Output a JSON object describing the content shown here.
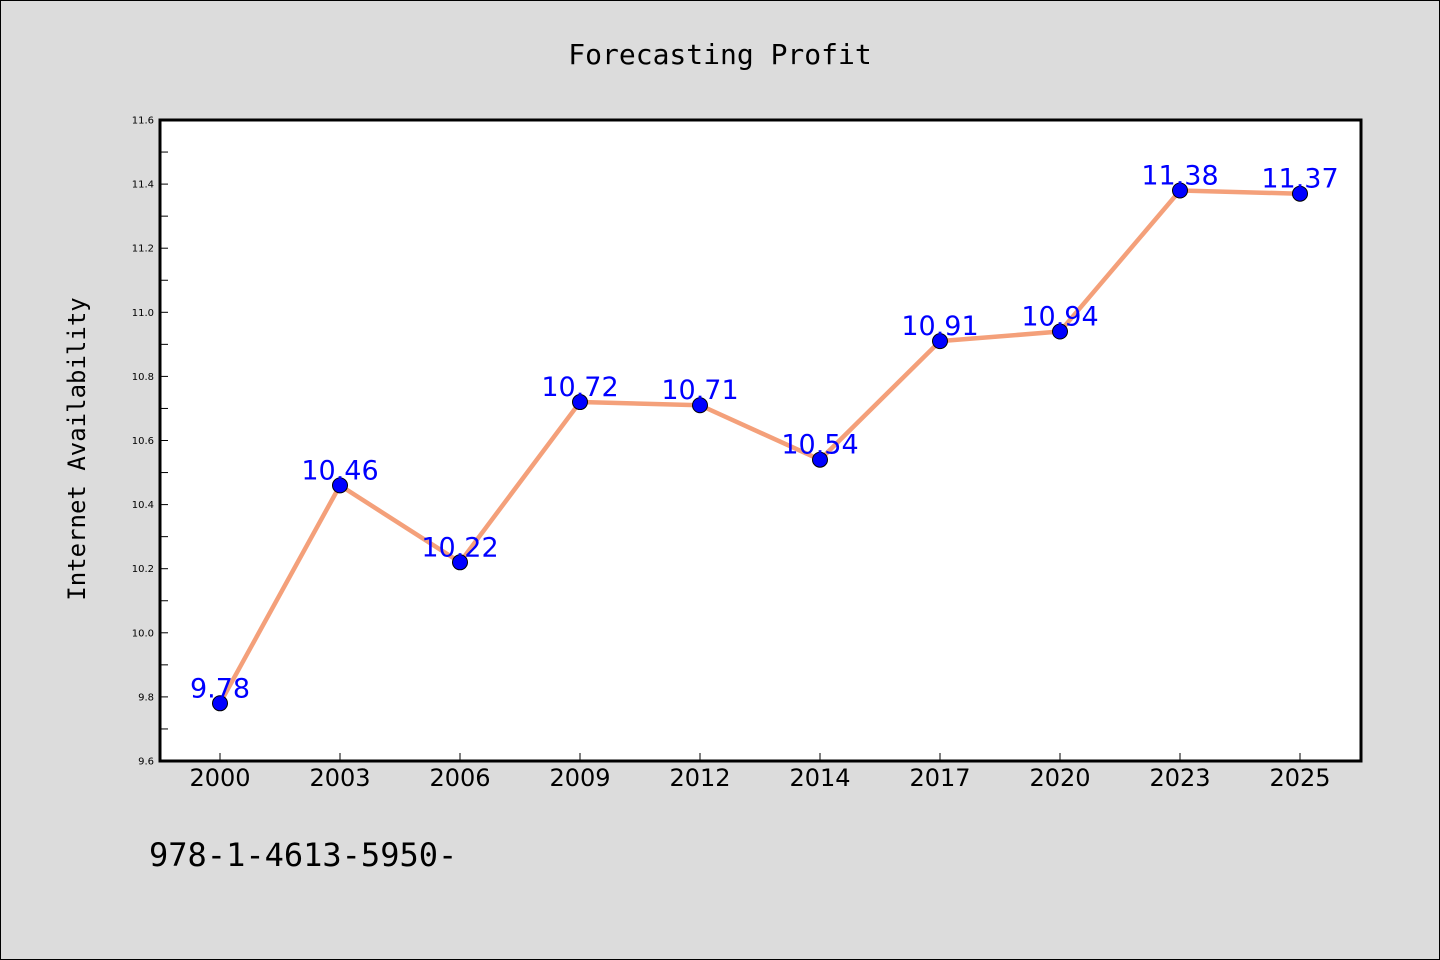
{
  "chart_data": {
    "type": "line",
    "title": "Forecasting Profit",
    "xlabel": "",
    "ylabel": "Internet Availability",
    "categories": [
      "2000",
      "2003",
      "2006",
      "2009",
      "2012",
      "2014",
      "2017",
      "2020",
      "2023",
      "2025"
    ],
    "series": [
      {
        "values": [
          9.78,
          10.46,
          10.22,
          10.72,
          10.71,
          10.54,
          10.91,
          10.94,
          11.38,
          11.37
        ],
        "labels": [
          "9.78",
          "10.46",
          "10.22",
          "10.72",
          "10.71",
          "10.54",
          "10.91",
          "10.94",
          "11.38",
          "11.37"
        ],
        "line_color": "#f4a07a",
        "marker_color": "#0000ff"
      }
    ],
    "ylim": [
      9.6,
      11.6
    ],
    "yticks": [
      "9.6",
      "9.8",
      "10.0",
      "10.2",
      "10.4",
      "10.6",
      "10.8",
      "11.0",
      "11.2",
      "11.4",
      "11.6"
    ],
    "grid": false,
    "legend": "none"
  },
  "footer": {
    "text": "978-1-4613-5950-"
  },
  "colors": {
    "background": "#dcdcdc",
    "plot_background": "#ffffff",
    "label_color": "#0000ff"
  }
}
